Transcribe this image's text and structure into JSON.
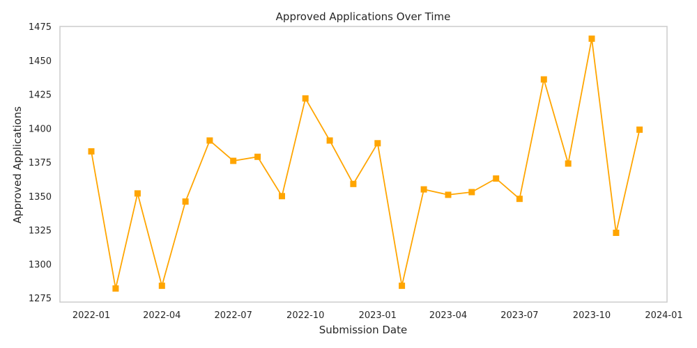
{
  "chart_data": {
    "type": "line",
    "title": "Approved Applications Over Time",
    "xlabel": "Submission Date",
    "ylabel": "Approved Applications",
    "x_ticks": [
      "2022-01",
      "2022-04",
      "2022-07",
      "2022-10",
      "2023-01",
      "2023-04",
      "2023-07",
      "2023-10",
      "2024-01"
    ],
    "y_ticks": [
      "1275",
      "1300",
      "1325",
      "1350",
      "1375",
      "1400",
      "1425",
      "1450",
      "1475"
    ],
    "ylim": [
      1272,
      1475
    ],
    "xlim": [
      "2021-11-22",
      "2024-01-05"
    ],
    "grid": true,
    "series": [
      {
        "color": "#FFA500",
        "marker": "square",
        "x": [
          "2022-01-01",
          "2022-02-01",
          "2022-03-01",
          "2022-04-01",
          "2022-05-01",
          "2022-06-01",
          "2022-07-01",
          "2022-08-01",
          "2022-09-01",
          "2022-10-01",
          "2022-11-01",
          "2022-12-01",
          "2023-01-01",
          "2023-02-01",
          "2023-03-01",
          "2023-04-01",
          "2023-05-01",
          "2023-06-01",
          "2023-07-01",
          "2023-08-01",
          "2023-09-01",
          "2023-10-01",
          "2023-11-01",
          "2023-12-01"
        ],
        "values": [
          1383,
          1282,
          1352,
          1284,
          1346,
          1391,
          1376,
          1379,
          1350,
          1422,
          1391,
          1359,
          1389,
          1284,
          1355,
          1351,
          1353,
          1363,
          1348,
          1436,
          1374,
          1466,
          1323,
          1399
        ]
      }
    ]
  }
}
